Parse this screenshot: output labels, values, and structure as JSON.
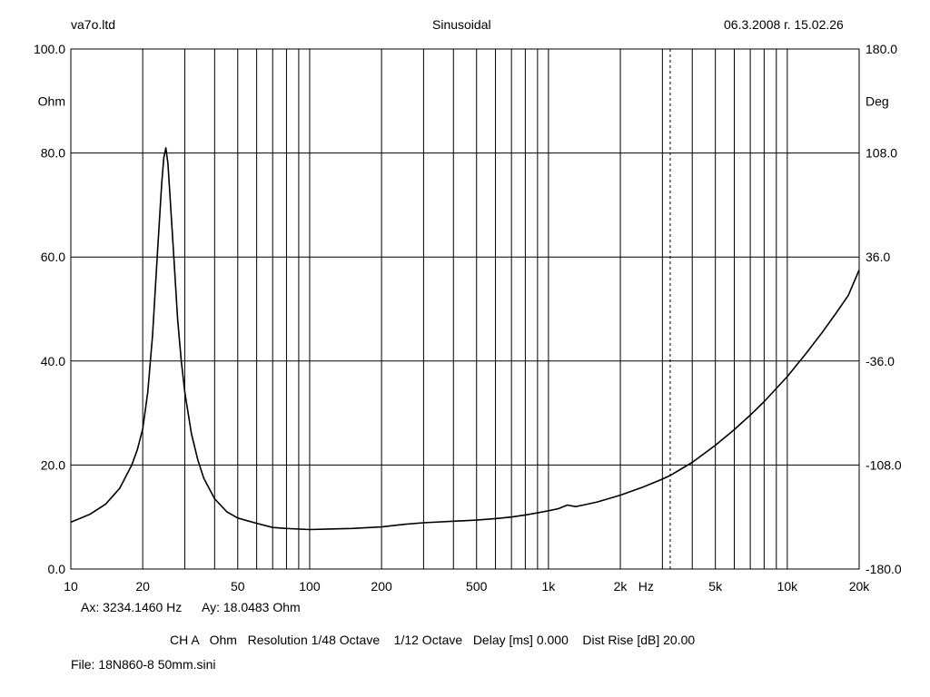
{
  "header": {
    "left": "va7o.ltd",
    "center": "Sinusoidal",
    "right": "06.3.2008 г. 15.02.26"
  },
  "cursor": {
    "ax_label": "Ax: 3234.1460 Hz",
    "ay_label": "Ay: 18.0483 Ohm",
    "x_value": 3234.146
  },
  "settings_line": "CH A   Ohm   Resolution 1/48 Octave    1/12 Octave   Delay [ms] 0.000    Dist Rise [dB] 20.00",
  "file_line": "File: 18N860-8 50mm.sini",
  "colors": {
    "grid": "#000000",
    "curve": "#000000",
    "background": "#ffffff"
  },
  "chart_data": {
    "type": "line",
    "x_scale": "log",
    "xlim": [
      10,
      20000
    ],
    "ylim": [
      0,
      100
    ],
    "y2lim": [
      -180,
      180
    ],
    "ylabel": "Ohm",
    "y2label": "Deg",
    "xunit_label": "Hz",
    "grid": true,
    "y_ticks": [
      {
        "value": 0,
        "label": "0.0"
      },
      {
        "value": 20,
        "label": "20.0"
      },
      {
        "value": 40,
        "label": "40.0"
      },
      {
        "value": 60,
        "label": "60.0"
      },
      {
        "value": 80,
        "label": "80.0"
      },
      {
        "value": 100,
        "label": "100.0"
      }
    ],
    "y2_ticks": [
      {
        "value": -180,
        "label": "-180.0"
      },
      {
        "value": -108,
        "label": "-108.0"
      },
      {
        "value": -36,
        "label": "-36.0"
      },
      {
        "value": 36,
        "label": "36.0"
      },
      {
        "value": 108,
        "label": "108.0"
      },
      {
        "value": 180,
        "label": "180.0"
      }
    ],
    "x_ticks": [
      {
        "value": 10,
        "label": "10"
      },
      {
        "value": 20,
        "label": "20"
      },
      {
        "value": 50,
        "label": "50"
      },
      {
        "value": 100,
        "label": "100"
      },
      {
        "value": 200,
        "label": "200"
      },
      {
        "value": 500,
        "label": "500"
      },
      {
        "value": 1000,
        "label": "1k"
      },
      {
        "value": 2000,
        "label": "2k"
      },
      {
        "value": 5000,
        "label": "5k"
      },
      {
        "value": 10000,
        "label": "10k"
      },
      {
        "value": 20000,
        "label": "20k"
      }
    ],
    "series": [
      {
        "x": [
          10,
          12,
          14,
          16,
          18,
          19,
          20,
          21,
          22,
          23,
          24,
          24.5,
          25,
          25.5,
          26,
          27,
          28,
          29,
          30,
          32,
          34,
          36,
          40,
          45,
          50,
          60,
          70,
          80,
          100,
          120,
          150,
          200,
          250,
          300,
          400,
          500,
          600,
          700,
          800,
          900,
          1000,
          1100,
          1200,
          1300,
          1400,
          1600,
          2000,
          2500,
          3000,
          3234,
          4000,
          5000,
          6000,
          7000,
          8000,
          10000,
          12000,
          14000,
          16000,
          18000,
          20000
        ],
        "y": [
          9,
          10.5,
          12.5,
          15.5,
          20,
          23,
          27,
          34,
          45,
          60,
          74,
          79,
          81,
          78,
          72,
          60,
          48,
          40,
          34,
          26,
          21,
          17.5,
          13.5,
          11,
          9.8,
          8.8,
          8.0,
          7.8,
          7.6,
          7.7,
          7.8,
          8.1,
          8.6,
          8.9,
          9.2,
          9.4,
          9.7,
          10.0,
          10.4,
          10.8,
          11.2,
          11.6,
          12.3,
          12.0,
          12.3,
          12.9,
          14.2,
          15.8,
          17.3,
          18.0,
          20.5,
          23.8,
          26.8,
          29.6,
          32.2,
          37.0,
          41.5,
          45.5,
          49.2,
          52.6,
          57.5
        ]
      }
    ]
  }
}
